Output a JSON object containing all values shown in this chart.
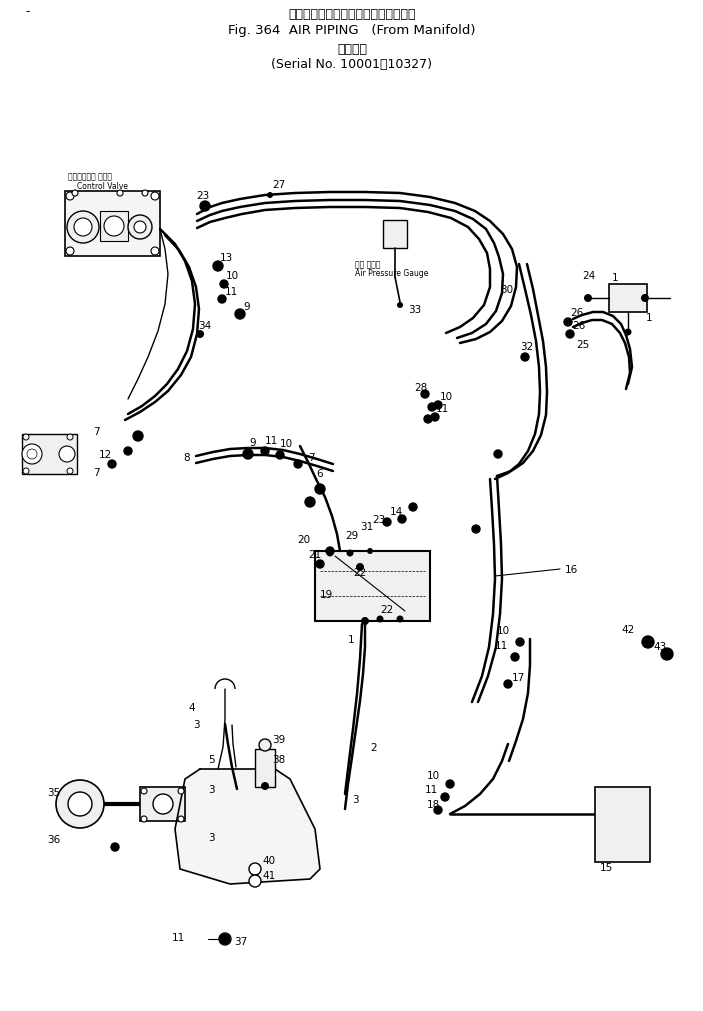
{
  "title_jp": "エアーパイピング　マニホールドから",
  "title_en": "Fig. 364  AIR PIPING   (From Manifold)",
  "serial_jp": "適用号機",
  "serial_en": "(Serial No. 10001～10327)",
  "bg_color": "#ffffff",
  "lc": "#000000",
  "fig_width": 7.03,
  "fig_height": 10.12,
  "label_jp1": "コントロール バルブ",
  "label_jp2": "Control Valve",
  "label_gauge_jp": "空気 圧力計",
  "label_gauge_en": "Air Pressure Gauge"
}
